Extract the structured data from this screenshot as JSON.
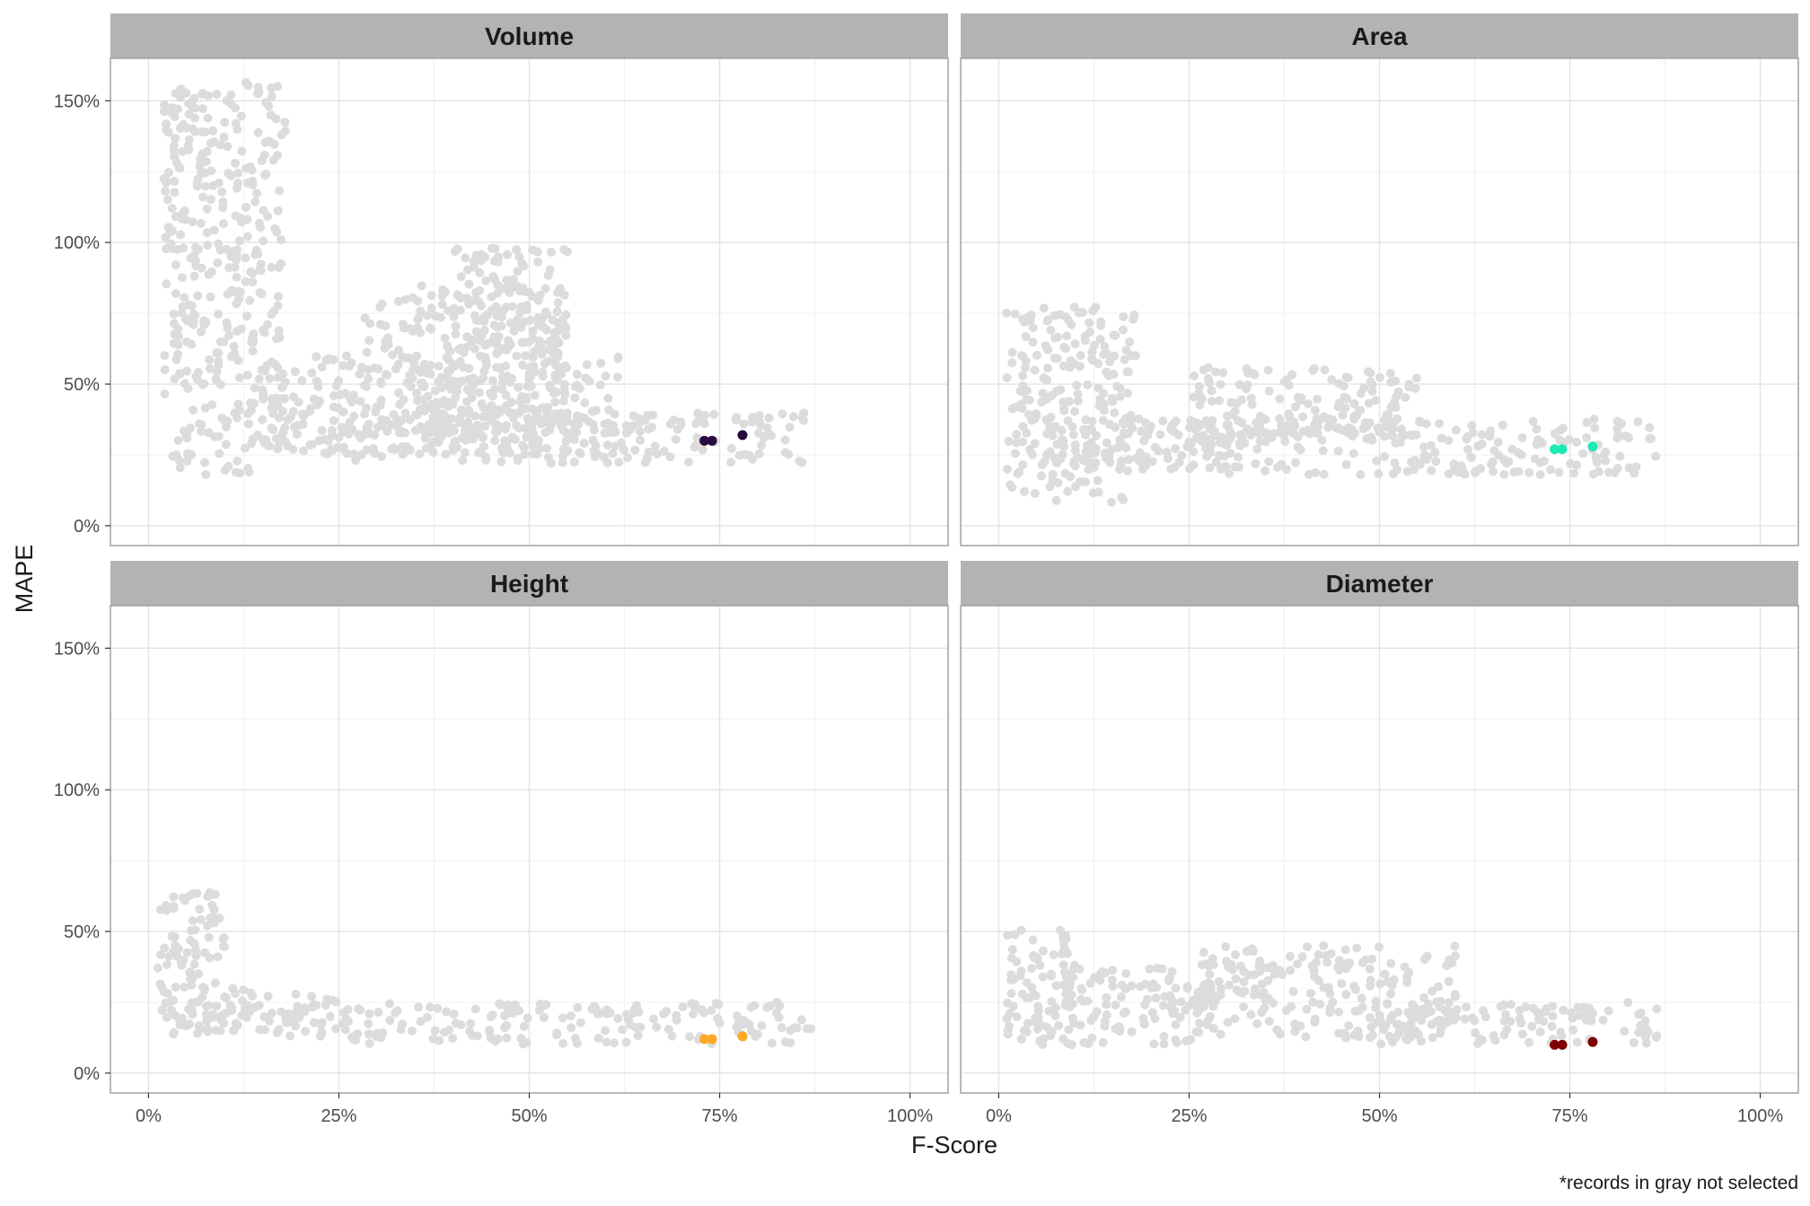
{
  "chart_data": {
    "type": "scatter",
    "facets": true,
    "xlabel": "F-Score",
    "ylabel": "MAPE",
    "xlim": [
      -0.05,
      1.05
    ],
    "ylim": [
      -0.07,
      1.65
    ],
    "x_ticks": [
      0,
      0.25,
      0.5,
      0.75,
      1.0
    ],
    "x_tick_labels": [
      "0%",
      "25%",
      "50%",
      "75%",
      "100%"
    ],
    "y_ticks": [
      0,
      0.5,
      1.0,
      1.5
    ],
    "y_tick_labels": [
      "0%",
      "50%",
      "100%",
      "150%"
    ],
    "caption": "*records in gray not selected",
    "grid": true,
    "unselected_color": "#dcdcdc",
    "panels": [
      {
        "title": "Volume",
        "highlight_color": "#2a0a3f",
        "background_clusters": [
          {
            "x": [
              0.28,
              0.55
            ],
            "y": [
              0.32,
              0.85
            ]
          },
          {
            "x": [
              0.25,
              0.87
            ],
            "y": [
              0.22,
              0.4
            ]
          },
          {
            "x": [
              0.15,
              0.62
            ],
            "y": [
              0.25,
              0.6
            ]
          },
          {
            "x": [
              0.4,
              0.55
            ],
            "y": [
              0.6,
              0.98
            ]
          },
          {
            "x": [
              0.02,
              0.18
            ],
            "y": [
              0.18,
              1.57
            ]
          }
        ],
        "highlight_points": [
          [
            0.73,
            0.3
          ],
          [
            0.74,
            0.3
          ],
          [
            0.78,
            0.32
          ]
        ]
      },
      {
        "title": "Area",
        "highlight_color": "#1de9b6",
        "background_clusters": [
          {
            "x": [
              0.25,
              0.87
            ],
            "y": [
              0.18,
              0.38
            ]
          },
          {
            "x": [
              0.25,
              0.55
            ],
            "y": [
              0.3,
              0.56
            ]
          },
          {
            "x": [
              0.08,
              0.3
            ],
            "y": [
              0.2,
              0.38
            ]
          },
          {
            "x": [
              0.01,
              0.18
            ],
            "y": [
              0.08,
              0.78
            ]
          }
        ],
        "highlight_points": [
          [
            0.73,
            0.27
          ],
          [
            0.74,
            0.27
          ],
          [
            0.78,
            0.28
          ]
        ]
      },
      {
        "title": "Height",
        "highlight_color": "#ffa726",
        "background_clusters": [
          {
            "x": [
              0.25,
              0.87
            ],
            "y": [
              0.1,
              0.25
            ]
          },
          {
            "x": [
              0.05,
              0.25
            ],
            "y": [
              0.13,
              0.3
            ]
          },
          {
            "x": [
              0.01,
              0.1
            ],
            "y": [
              0.13,
              0.64
            ]
          }
        ],
        "highlight_points": [
          [
            0.73,
            0.12
          ],
          [
            0.74,
            0.12
          ],
          [
            0.78,
            0.13
          ]
        ]
      },
      {
        "title": "Diameter",
        "highlight_color": "#7f0000",
        "background_clusters": [
          {
            "x": [
              0.25,
              0.6
            ],
            "y": [
              0.12,
              0.45
            ]
          },
          {
            "x": [
              0.5,
              0.87
            ],
            "y": [
              0.1,
              0.25
            ]
          },
          {
            "x": [
              0.08,
              0.28
            ],
            "y": [
              0.1,
              0.38
            ]
          },
          {
            "x": [
              0.01,
              0.1
            ],
            "y": [
              0.1,
              0.52
            ]
          }
        ],
        "highlight_points": [
          [
            0.73,
            0.1
          ],
          [
            0.74,
            0.1
          ],
          [
            0.78,
            0.11
          ]
        ]
      }
    ]
  }
}
